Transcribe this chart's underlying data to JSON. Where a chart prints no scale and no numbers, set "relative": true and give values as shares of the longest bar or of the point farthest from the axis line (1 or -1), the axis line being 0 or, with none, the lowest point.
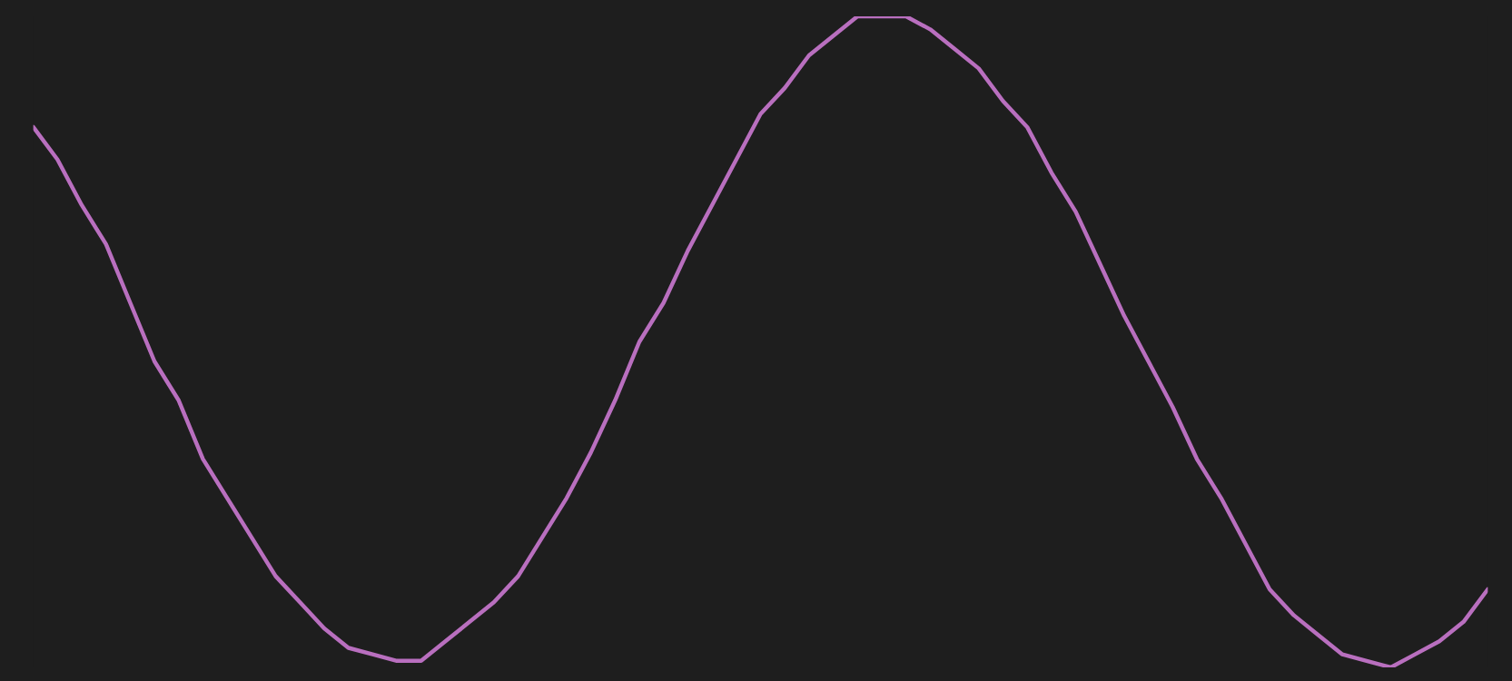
{
  "chart_data": {
    "type": "line",
    "relative": true,
    "color": "#b96fbf",
    "grid": false,
    "legend": false,
    "marker": "none",
    "line_style": "solid",
    "categories": [
      null,
      null,
      null,
      null,
      null,
      null,
      null,
      null,
      null,
      null,
      null,
      null,
      null,
      null,
      null,
      null,
      null,
      null,
      null,
      null,
      null,
      null,
      null,
      null,
      null,
      null,
      null,
      null,
      null,
      null,
      null,
      null,
      null,
      null,
      null,
      null,
      null,
      null,
      null,
      null,
      null,
      null,
      null,
      null,
      null,
      null,
      null,
      null,
      null,
      null,
      null,
      null,
      null,
      null,
      null,
      null,
      null,
      null,
      null,
      null,
      null
    ],
    "values": [
      0.83,
      0.78,
      0.71,
      0.65,
      0.56,
      0.47,
      0.41,
      0.32,
      0.26,
      0.2,
      0.14,
      0.1,
      0.06,
      0.03,
      0.02,
      0.01,
      0.01,
      0.04,
      0.07,
      0.1,
      0.14,
      0.2,
      0.26,
      0.33,
      0.41,
      0.5,
      0.56,
      0.64,
      0.71,
      0.78,
      0.85,
      0.89,
      0.94,
      0.97,
      1,
      1,
      1,
      0.98,
      0.95,
      0.92,
      0.87,
      0.83,
      0.76,
      0.7,
      0.62,
      0.54,
      0.47,
      0.4,
      0.32,
      0.26,
      0.19,
      0.12,
      0.08,
      0.05,
      0.02,
      0.01,
      0,
      0.02,
      0.04,
      0.07,
      0.12
    ]
  }
}
